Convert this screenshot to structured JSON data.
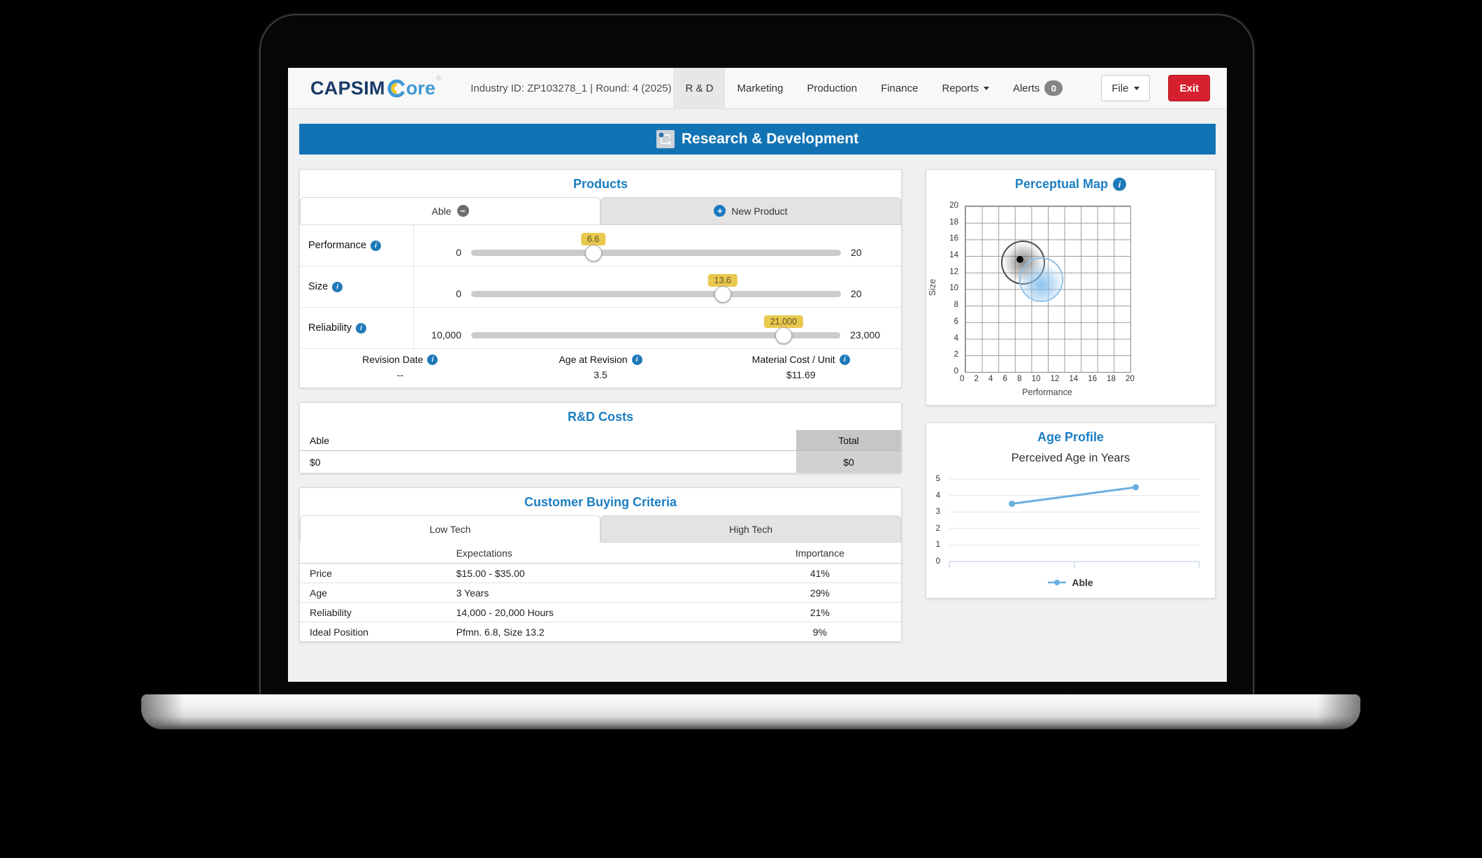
{
  "colors": {
    "accent_blue": "#1b7ec2",
    "header_bar_blue": "#1273b4",
    "exit_red": "#d6202f",
    "slider_tooltip_yellow": "#e9c84e",
    "age_line_blue": "#6aaede",
    "brand_navy": "#1a3a66",
    "brand_blue": "#3f9ad2",
    "brand_yellow": "#f2c41d"
  },
  "icons": {
    "info": "i",
    "minus": "−",
    "plus": "+"
  },
  "nav": {
    "logo": {
      "brand": "CAPSIM",
      "product_rest": "ore",
      "registered": "®"
    },
    "industry_label": "Industry ID: ZP103278_1 | Round: 4 (2025)",
    "tabs": [
      {
        "label": "R & D",
        "active": true
      },
      {
        "label": "Marketing",
        "active": false
      },
      {
        "label": "Production",
        "active": false
      },
      {
        "label": "Finance",
        "active": false
      },
      {
        "label": "Reports",
        "active": false,
        "has_caret": true
      },
      {
        "label": "Alerts",
        "active": false,
        "badge": "0"
      }
    ],
    "file_button": "File",
    "exit_button": "Exit"
  },
  "page_header": {
    "title": "Research & Development"
  },
  "products": {
    "title": "Products",
    "tabs": [
      {
        "label": "Able"
      },
      {
        "label": "New Product"
      }
    ],
    "sliders": [
      {
        "label": "Performance",
        "min": "0",
        "max": "20",
        "value": "6.6",
        "percent": 33
      },
      {
        "label": "Size",
        "min": "0",
        "max": "20",
        "value": "13.6",
        "percent": 68
      },
      {
        "label": "Reliability",
        "min": "10,000",
        "max": "23,000",
        "value": "21,000",
        "percent": 84.6
      }
    ],
    "footer": [
      {
        "label": "Revision Date",
        "value": "--"
      },
      {
        "label": "Age at Revision",
        "value": "3.5"
      },
      {
        "label": "Material Cost / Unit",
        "value": "$11.69"
      }
    ]
  },
  "rd_costs": {
    "title": "R&D Costs",
    "row_header": "Able",
    "total_header": "Total",
    "row_value": "$0",
    "total_value": "$0"
  },
  "buying_criteria": {
    "title": "Customer Buying Criteria",
    "tabs": [
      {
        "label": "Low Tech",
        "active": true
      },
      {
        "label": "High Tech",
        "active": false
      }
    ],
    "col_headers": [
      "Expectations",
      "Importance"
    ],
    "rows": [
      {
        "label": "Price",
        "expectation": "$15.00 - $35.00",
        "importance": "41%"
      },
      {
        "label": "Age",
        "expectation": "3 Years",
        "importance": "29%"
      },
      {
        "label": "Reliability",
        "expectation": "14,000 - 20,000 Hours",
        "importance": "21%"
      },
      {
        "label": "Ideal Position",
        "expectation": "Pfmn. 6.8, Size 13.2",
        "importance": "9%"
      }
    ]
  },
  "perceptual_map": {
    "title": "Perceptual Map",
    "xlabel": "Performance",
    "ylabel": "Size",
    "axis_min": 0,
    "axis_max": 20,
    "ticks": [
      0,
      2,
      4,
      6,
      8,
      10,
      12,
      14,
      16,
      18,
      20
    ],
    "chart_data": {
      "type": "scatter",
      "product": {
        "name": "Able",
        "x": 6.6,
        "y": 13.6
      },
      "segments": [
        {
          "name": "segment-gray",
          "x": 6.8,
          "y": 13.4,
          "r": 2.5
        },
        {
          "name": "segment-blue",
          "x": 9.0,
          "y": 11.3,
          "r": 2.5
        }
      ]
    }
  },
  "age_profile": {
    "title": "Age Profile",
    "subtitle": "Perceived Age in Years",
    "chart_data": {
      "type": "line",
      "ylim": [
        0,
        5
      ],
      "y_ticks": [
        0,
        1,
        2,
        3,
        4,
        5
      ],
      "series": [
        {
          "name": "Able",
          "values": [
            3.5,
            4.5
          ]
        }
      ]
    }
  }
}
